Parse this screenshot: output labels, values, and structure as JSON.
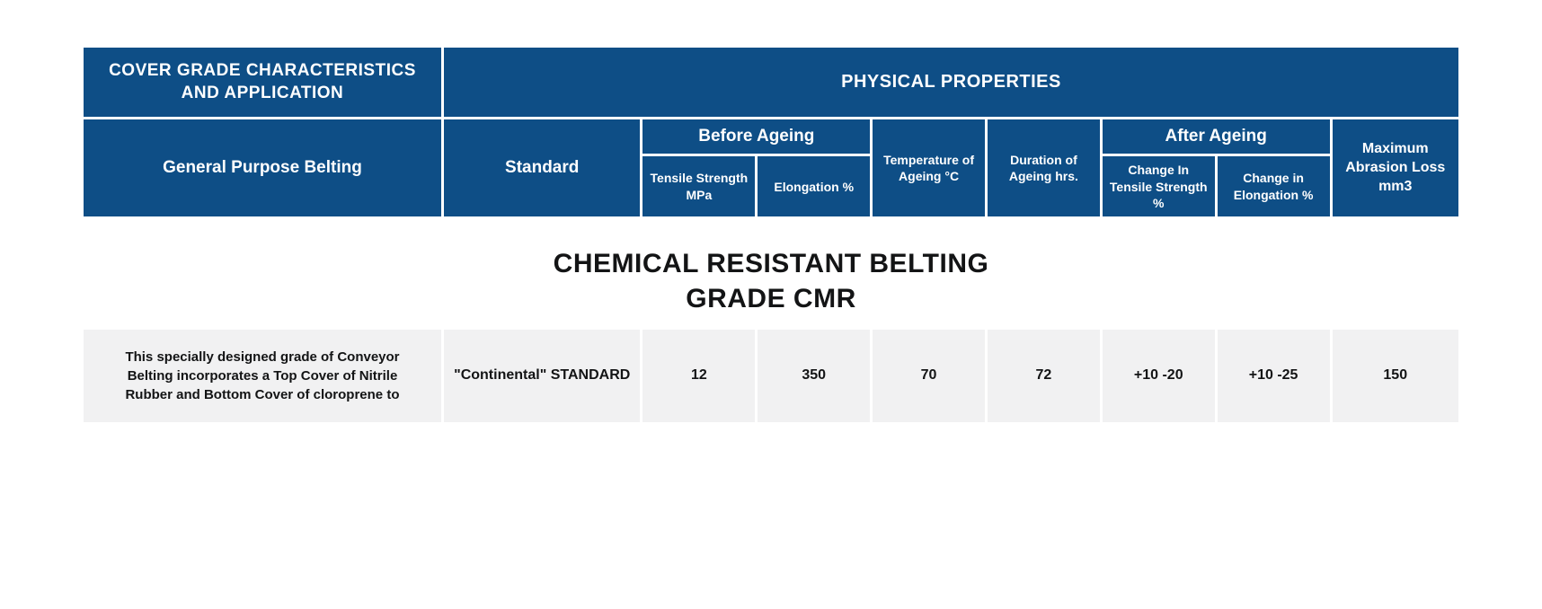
{
  "header": {
    "left_title_line1": "COVER GRADE CHARACTERISTICS",
    "left_title_line2": "AND APPLICATION",
    "right_title": "PHYSICAL PROPERTIES"
  },
  "subheader": {
    "general_purpose": "General Purpose Belting",
    "standard": "Standard",
    "before_ageing": "Before Ageing",
    "after_ageing": "After Ageing",
    "tensile_strength": "Tensile Strength MPa",
    "elongation": "Elongation %",
    "temperature": "Temperature of Ageing °C",
    "duration": "Duration of Ageing hrs.",
    "change_tensile": "Change In Tensile Strength %",
    "change_elongation": "Change in Elongation %",
    "max_abrasion": "Maximum Abrasion Loss mm3"
  },
  "section": {
    "title_line1": "CHEMICAL RESISTANT BELTING",
    "title_line2": "GRADE CMR"
  },
  "data_row": {
    "description": "This specially designed grade of Conveyor Belting incorporates a Top Cover of Nitrile Rubber and Bottom Cover of cloroprene to",
    "standard": "\"Continental\" STANDARD",
    "tensile": "12",
    "elongation": "350",
    "temperature": "70",
    "duration": "72",
    "change_tensile": "+10  -20",
    "change_elongation": "+10  -25",
    "abrasion": "150"
  },
  "colors": {
    "header_bg": "#0e4e86",
    "header_text": "#ffffff",
    "data_bg": "#f1f1f2",
    "data_text": "#131415",
    "page_bg": "#ffffff"
  }
}
